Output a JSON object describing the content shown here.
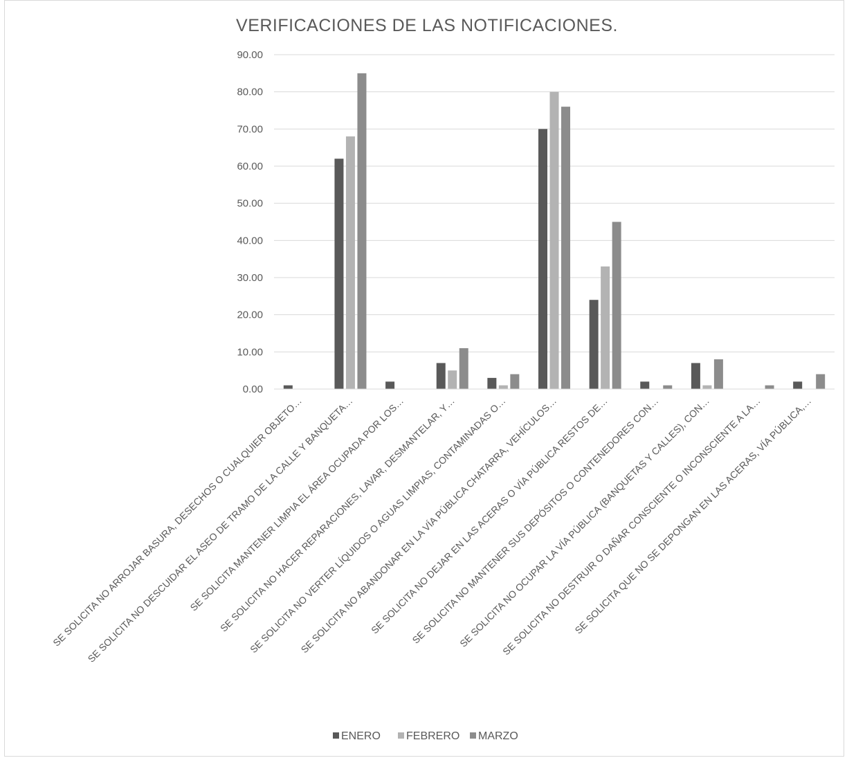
{
  "chart_data": {
    "type": "bar",
    "title": "VERIFICACIONES DE LAS NOTIFICACIONES.",
    "xlabel": "",
    "ylabel": "",
    "ylim": [
      0,
      90
    ],
    "yticks": [
      "0.00",
      "10.00",
      "20.00",
      "30.00",
      "40.00",
      "50.00",
      "60.00",
      "70.00",
      "80.00",
      "90.00"
    ],
    "grid": true,
    "legend_position": "bottom",
    "categories": [
      "SE SOLICITA NO ARROJAR BASURA, DESECHOS O CUALQUIER OBJETO…",
      "SE SOLICITA NO DESCUIDAR EL ASEO DE TRAMO DE LA CALLE Y BANQUETA…",
      "SE SOLICITA MANTENER LIMPIA EL ÁREA OCUPADA POR LOS…",
      "SE SOLICITA NO HACER REPARACIONES, LAVAR, DESMANTELAR, Y…",
      "SE SOLICITA NO VERTER LÍQUIDOS O AGUAS LIMPIAS, CONTAMINADAS O…",
      "SE SOLICITA NO ABANDONAR EN LA VÍA PÚBLICA CHATARRA, VEHÍCULOS…",
      "SE SOLICITA NO DEJAR EN LAS ACERAS O VÍA PÚBLICA RESTOS DE…",
      "SE SOLICITA NO MANTENER SUS DEPÓSITOS O CONTENEDORES CON…",
      "SE SOLICITA NO OCUPAR LA VÍA PÚBLICA (BANQUETAS Y CALLES), CON…",
      "SE SOLICITA NO DESTRUIR O DAÑAR CONSCIENTE O INCONSCIENTE A LA…",
      "SE SOLICITA QUE NO SE DEPONGAN EN LAS ACERAS, VÍA PÚBLICA,…"
    ],
    "series": [
      {
        "name": "ENERO",
        "color": "#595959",
        "values": [
          1,
          62,
          2,
          7,
          3,
          70,
          24,
          2,
          7,
          0,
          2
        ]
      },
      {
        "name": "FEBRERO",
        "color": "#b3b3b3",
        "values": [
          0,
          68,
          0,
          5,
          1,
          80,
          33,
          0,
          1,
          0,
          0
        ]
      },
      {
        "name": "MARZO",
        "color": "#8c8c8c",
        "values": [
          0,
          85,
          0,
          11,
          4,
          76,
          45,
          1,
          8,
          1,
          4
        ]
      }
    ]
  }
}
